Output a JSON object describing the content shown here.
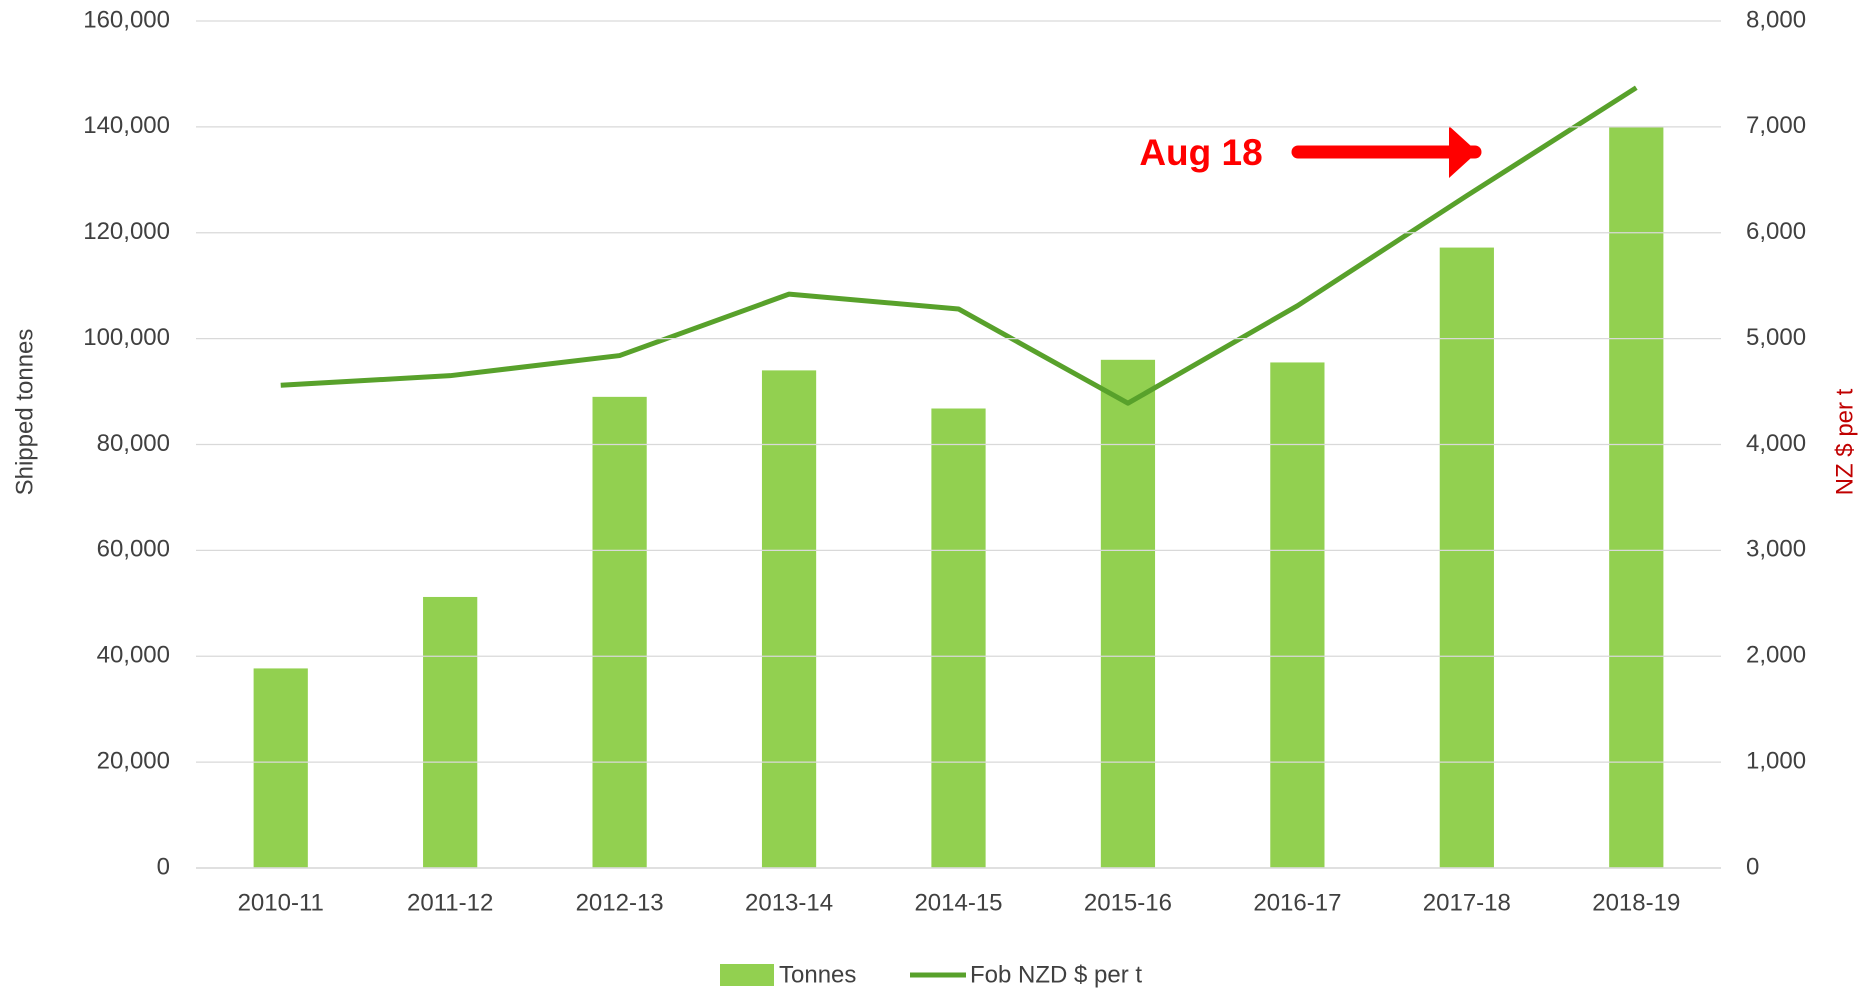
{
  "chart_data": {
    "type": "bar_line",
    "categories": [
      "2010-11",
      "2011-12",
      "2012-13",
      "2013-14",
      "2014-15",
      "2015-16",
      "2016-17",
      "2017-18",
      "2018-19"
    ],
    "series": [
      {
        "name": "Tonnes",
        "type": "bar",
        "color": "#92d050",
        "values": [
          37700,
          51200,
          89000,
          94000,
          86800,
          96000,
          95500,
          117200,
          140000
        ]
      },
      {
        "name": "Fob NZD $ per t",
        "type": "line",
        "axis": "y2",
        "color": "#58a12b",
        "values": [
          4560,
          4650,
          4840,
          5420,
          5280,
          4390,
          5310,
          6350,
          7370
        ]
      }
    ],
    "ylabel": "Shipped tonnes",
    "y2label": "NZ $ per t",
    "ylim": [
      0,
      160000
    ],
    "yticks": [
      0,
      {
        "value": 20000,
        "label": "20,000"
      },
      {
        "value": 40000,
        "label": "40,000"
      },
      {
        "value": 60000,
        "label": "60,000"
      },
      {
        "value": 80000,
        "label": "80,000"
      },
      {
        "value": 100000,
        "label": "100,000"
      },
      {
        "value": 120000,
        "label": "120,000"
      },
      {
        "value": 140000,
        "label": "140,000"
      },
      {
        "value": 160000,
        "label": "160,000"
      }
    ],
    "y2lim": [
      0,
      8000
    ],
    "y2ticks": [
      0,
      {
        "value": 1000,
        "label": "1,000"
      },
      {
        "value": 2000,
        "label": "2,000"
      },
      {
        "value": 3000,
        "label": "3,000"
      },
      {
        "value": 4000,
        "label": "4,000"
      },
      {
        "value": 5000,
        "label": "5,000"
      },
      {
        "value": 6000,
        "label": "6,000"
      },
      {
        "value": 7000,
        "label": "7,000"
      },
      {
        "value": 8000,
        "label": "8,000"
      }
    ],
    "grid": true,
    "legend": "bottom",
    "annotations": [
      {
        "text": "Aug 18"
      }
    ]
  }
}
